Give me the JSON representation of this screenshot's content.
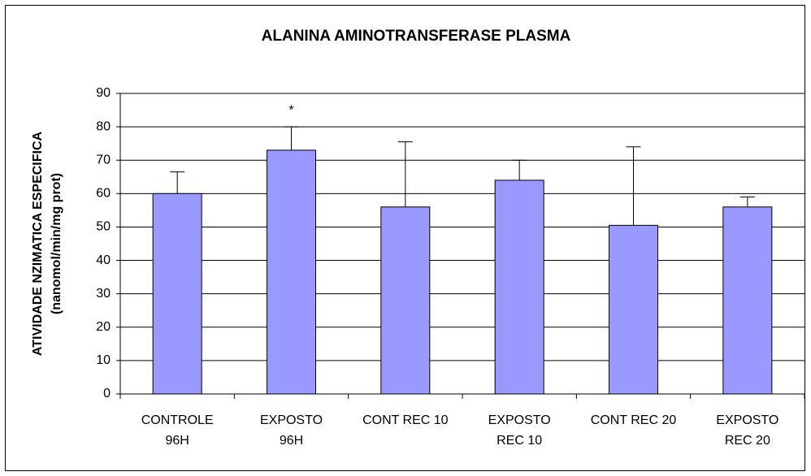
{
  "chart_data": {
    "type": "bar",
    "title": "ALANINA AMINOTRANSFERASE PLASMA",
    "y_label": [
      "ATIVIDADE NZIMATICA ESPECIFICA",
      "(nanomol/min/mg prot)"
    ],
    "categories": [
      "CONTROLE\n96H",
      "EXPOSTO\n96H",
      "CONT REC 10",
      "EXPOSTO\nREC 10",
      "CONT REC 20",
      "EXPOSTO\nREC 20"
    ],
    "values": [
      60,
      73,
      56,
      64,
      50.5,
      56
    ],
    "errors": [
      6.5,
      7,
      19.5,
      6,
      23.5,
      3
    ],
    "annotations": [
      {
        "text": "*",
        "category": 1
      }
    ],
    "color": "#9999ff",
    "ylim": [
      0,
      90
    ],
    "yticks": [
      0,
      10,
      20,
      30,
      40,
      50,
      60,
      70,
      80,
      90
    ],
    "grid": true
  }
}
